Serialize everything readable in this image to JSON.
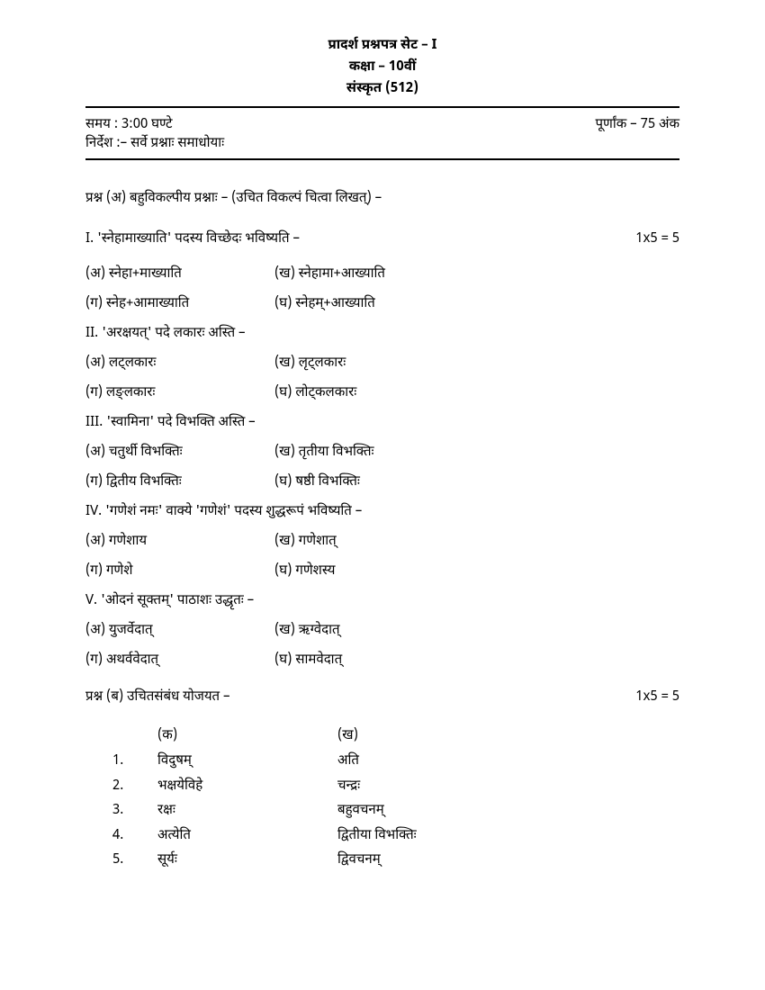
{
  "header": {
    "line1": "प्रादर्श प्रश्नपत्र सेट – I",
    "line2": "कक्षा – 10वीं",
    "line3": "संस्कृत (512)"
  },
  "meta": {
    "time": "समय : 3:00 घण्टे",
    "marks": "पूर्णांक – 75 अंक",
    "instructions": "निर्देश :– सर्वे प्रश्नाः समाधोयाः"
  },
  "sectionA": {
    "title": "प्रश्न (अ) बहुविकल्पीय प्रश्नाः – (उचित विकल्पं चित्वा लिखत्) –",
    "marks": "1x5 = 5",
    "questions": [
      {
        "num": "I.",
        "text": "'स्नेहामाख्याति' पदस्य विच्छेदः भविष्यति –",
        "opts": {
          "a": "(अ) स्नेहा+माख्याति",
          "b": "(ख) स्नेहामा+आख्याति",
          "c": "(ग) स्नेह+आमाख्याति",
          "d": "(घ) स्नेहम्+आख्याति"
        }
      },
      {
        "num": "II.",
        "text": "'अरक्षयत्' पदे लकारः अस्ति –",
        "opts": {
          "a": "(अ) लट्लकारः",
          "b": "(ख) लृट्लकारः",
          "c": "(ग) लङ्लकारः",
          "d": "(घ) लोट्कलकारः"
        }
      },
      {
        "num": "III.",
        "text": "'स्वामिना' पदे विभक्ति अस्ति –",
        "opts": {
          "a": "(अ) चतुर्थी विभक्तिः",
          "b": "(ख) तृतीया विभक्तिः",
          "c": "(ग) द्वितीय विभक्तिः",
          "d": "(घ) षष्ठी विभक्तिः"
        }
      },
      {
        "num": "IV.",
        "text": "'गणेशं नमः' वाक्ये 'गणेशं' पदस्य शुद्धरूपं भविष्यति –",
        "opts": {
          "a": "(अ) गणेशाय",
          "b": "(ख) गणेशात्",
          "c": "(ग) गणेशे",
          "d": "(घ) गणेशस्य"
        }
      },
      {
        "num": "V.",
        "text": "'ओदनं सूक्तम्' पाठाशः उद्धृतः –",
        "opts": {
          "a": "(अ) युजर्वेदात्",
          "b": "(ख) ऋग्वेदात्",
          "c": "(ग) अथर्ववेदात्",
          "d": "(घ) सामवेदात्"
        }
      }
    ]
  },
  "sectionB": {
    "title": "प्रश्न (ब) उचितसंबंध योजयत –",
    "marks": "1x5 = 5",
    "colK": "(क)",
    "colKh": "(ख)",
    "rows": [
      {
        "n": "1.",
        "k": "विदुषम्",
        "kh": "अति"
      },
      {
        "n": "2.",
        "k": "भक्षयेविहे",
        "kh": "चन्द्रः"
      },
      {
        "n": "3.",
        "k": "रक्षः",
        "kh": "बहुवचनम्"
      },
      {
        "n": "4.",
        "k": "अत्येति",
        "kh": "द्वितीया विभक्तिः"
      },
      {
        "n": "5.",
        "k": "सूर्यः",
        "kh": "द्विवचनम्"
      }
    ]
  }
}
